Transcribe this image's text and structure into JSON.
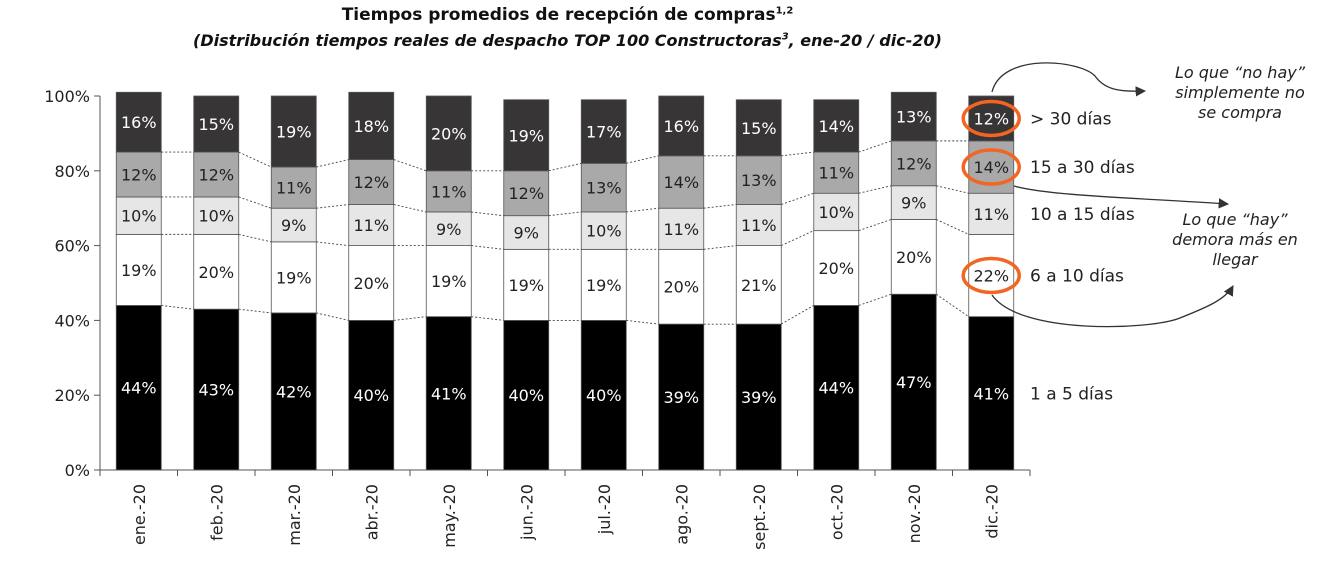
{
  "title": "Tiempos promedios de recepción de compras",
  "title_sup": "1,2",
  "subtitle_pre": "(Distribución tiempos reales de despacho TOP 100 Constructoras",
  "subtitle_sup": "3",
  "subtitle_post": ", ene-20 / dic-20)",
  "notes": {
    "top": [
      "Lo que “no hay”",
      "simplemente no",
      "se compra"
    ],
    "bottom": [
      "Lo que “hay”",
      "demora más en",
      "llegar"
    ]
  },
  "colors": {
    "1 a 5 días": "#000000",
    "6 a 10 días": "#ffffff",
    "10 a 15 días": "#e6e6e6",
    "15 a 30 días": "#a9a9a9",
    "> 30 días": "#383536",
    "highlight": "#f26522"
  },
  "chart_data": {
    "type": "bar",
    "stacked": true,
    "percent": true,
    "categories": [
      "ene.-20",
      "feb.-20",
      "mar.-20",
      "abr.-20",
      "may.-20",
      "jun.-20",
      "jul.-20",
      "ago.-20",
      "sept.-20",
      "oct.-20",
      "nov.-20",
      "dic.-20"
    ],
    "series": [
      {
        "name": "1 a 5 días",
        "values": [
          44,
          43,
          42,
          40,
          41,
          40,
          40,
          39,
          39,
          44,
          47,
          41
        ]
      },
      {
        "name": "6 a 10 días",
        "values": [
          19,
          20,
          19,
          20,
          19,
          19,
          19,
          20,
          21,
          20,
          20,
          22
        ]
      },
      {
        "name": "10 a 15 días",
        "values": [
          10,
          10,
          9,
          11,
          9,
          9,
          10,
          11,
          11,
          10,
          9,
          11
        ]
      },
      {
        "name": "15 a 30 días",
        "values": [
          12,
          12,
          11,
          12,
          11,
          12,
          13,
          14,
          13,
          11,
          12,
          14
        ]
      },
      {
        "name": "> 30 días",
        "values": [
          16,
          15,
          19,
          18,
          20,
          19,
          17,
          16,
          15,
          14,
          13,
          12
        ]
      }
    ],
    "yticks": [
      "0%",
      "20%",
      "40%",
      "60%",
      "80%",
      "100%"
    ],
    "ylim": [
      0,
      100
    ],
    "legend_placement": "right",
    "highlighted_labels": [
      {
        "category": "dic.-20",
        "series": "> 30 días"
      },
      {
        "category": "dic.-20",
        "series": "15 a 30 días"
      },
      {
        "category": "dic.-20",
        "series": "6 a 10 días"
      }
    ]
  }
}
